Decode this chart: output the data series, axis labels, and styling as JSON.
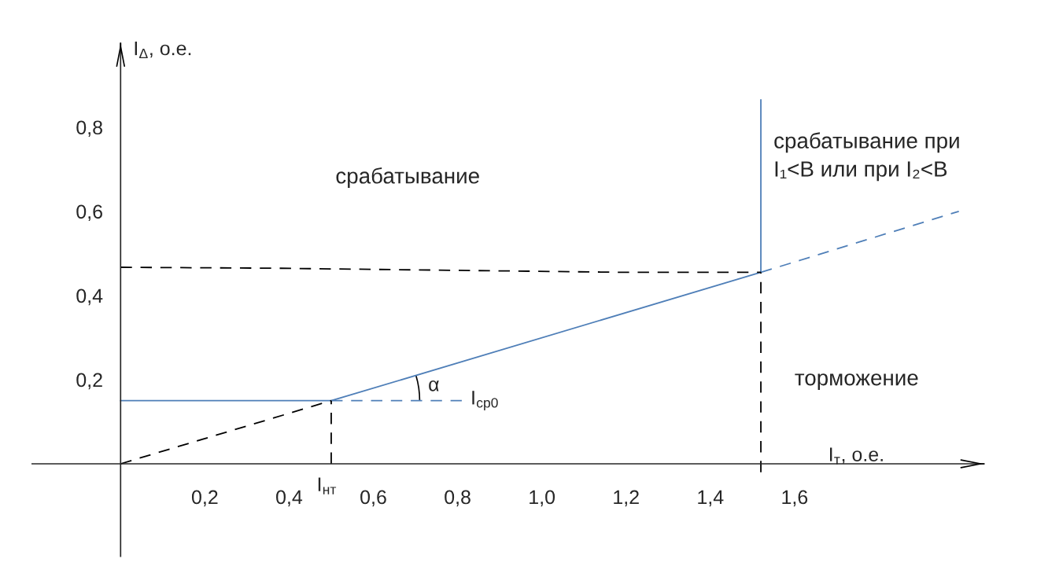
{
  "chart_data": {
    "type": "line",
    "xlabel": "I$_{т}$, о.е.",
    "ylabel": "I$_{Δ}$, о.е.",
    "xlim": [
      -0.21,
      2.05
    ],
    "ylim": [
      -0.22,
      1.0
    ],
    "xticks": [
      {
        "value": 0.2,
        "label": "0,2"
      },
      {
        "value": 0.4,
        "label": "0,4"
      },
      {
        "value": 0.6,
        "label": "0,6"
      },
      {
        "value": 0.8,
        "label": "0,8"
      },
      {
        "value": 1.0,
        "label": "1,0"
      },
      {
        "value": 1.2,
        "label": "1,2"
      },
      {
        "value": 1.4,
        "label": "1,4"
      },
      {
        "value": 1.6,
        "label": "1,6"
      }
    ],
    "yticks": [
      {
        "value": 0.2,
        "label": "0,2"
      },
      {
        "value": 0.4,
        "label": "0,4"
      },
      {
        "value": 0.6,
        "label": "0,6"
      },
      {
        "value": 0.8,
        "label": "0,8"
      }
    ],
    "series": [
      {
        "color": "#4f7fb8",
        "line_style": "solid",
        "x": [
          0,
          0.5,
          1.52,
          1.52
        ],
        "values": [
          0.15,
          0.15,
          0.455,
          0.865
        ]
      },
      {
        "color": "#4f7fb8",
        "line_style": "dashed",
        "x": [
          0.5,
          0.81
        ],
        "values": [
          0.15,
          0.15
        ]
      },
      {
        "color": "#4f7fb8",
        "line_style": "dashed",
        "x": [
          1.52,
          1.99
        ],
        "values": [
          0.455,
          0.6
        ]
      },
      {
        "color": "#000000",
        "line_style": "dashed",
        "x": [
          0,
          0.5
        ],
        "values": [
          0,
          0.15
        ]
      },
      {
        "color": "#000000",
        "line_style": "dashed",
        "x": [
          0.5,
          0.5
        ],
        "values": [
          0,
          0.15
        ]
      },
      {
        "color": "#000000",
        "line_style": "dashed",
        "x": [
          0,
          0.35,
          1.2,
          1.52
        ],
        "values": [
          0.467,
          0.465,
          0.455,
          0.455
        ]
      },
      {
        "color": "#000000",
        "line_style": "dashed",
        "x": [
          1.52,
          1.52
        ],
        "values": [
          -0.02,
          0.455
        ]
      }
    ],
    "annotations": [
      "срабатывание",
      "срабатывание при\nI₁<B или при I₂<B",
      "торможение",
      "α",
      {
        "text": "I$_{нт}$",
        "x": 0.5,
        "y": 0
      },
      {
        "text": "I$_{ср0}$",
        "x": 0.81,
        "y": 0.15
      }
    ]
  }
}
